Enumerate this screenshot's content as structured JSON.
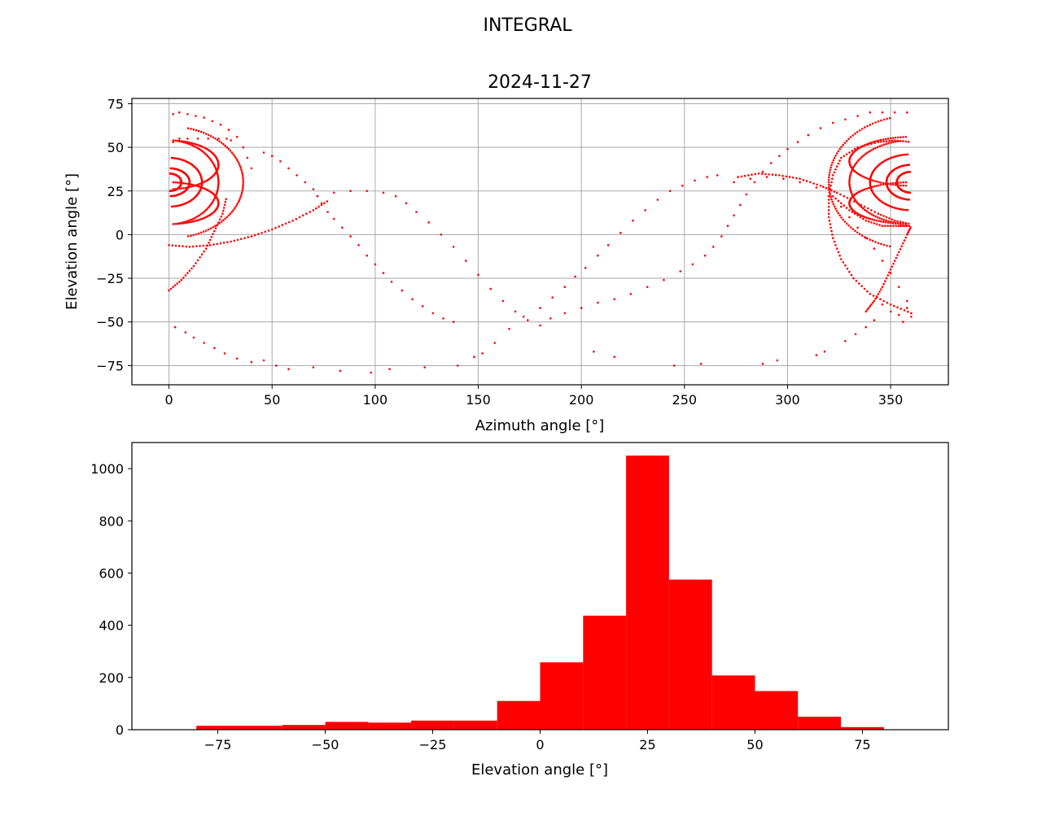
{
  "figure": {
    "suptitle": "INTEGRAL",
    "marker_color": "#ff0000"
  },
  "chart_data": [
    {
      "type": "scatter",
      "title": "2024-11-27",
      "xlabel": "Azimuth angle [°]",
      "ylabel": "Elevation angle [°]",
      "xlim": [
        -18,
        378
      ],
      "ylim": [
        -86,
        78
      ],
      "xticks": [
        0,
        50,
        100,
        150,
        200,
        250,
        300,
        350
      ],
      "yticks": [
        -75,
        -50,
        -25,
        0,
        25,
        50,
        75
      ],
      "grid": true,
      "color": "#ff0000",
      "bands": [
        {
          "az": [
            0,
            360
          ],
          "el": [
            -78,
            72
          ],
          "points": 1
        }
      ],
      "points": [
        [
          2,
          69
        ],
        [
          5,
          70
        ],
        [
          9,
          69
        ],
        [
          13,
          68
        ],
        [
          17,
          67
        ],
        [
          21,
          65
        ],
        [
          25,
          63
        ],
        [
          29,
          60
        ],
        [
          33,
          56
        ],
        [
          36,
          50
        ],
        [
          38,
          44
        ],
        [
          40,
          38
        ],
        [
          2,
          53
        ],
        [
          5,
          55
        ],
        [
          9,
          55
        ],
        [
          14,
          55
        ],
        [
          19,
          55
        ],
        [
          24,
          55
        ],
        [
          28,
          55
        ],
        [
          30,
          54
        ],
        [
          46,
          47
        ],
        [
          50,
          45
        ],
        [
          54,
          42
        ],
        [
          58,
          38
        ],
        [
          62,
          34
        ],
        [
          66,
          30
        ],
        [
          70,
          26
        ],
        [
          72,
          22
        ],
        [
          74,
          18
        ],
        [
          77,
          13
        ],
        [
          80,
          9
        ],
        [
          84,
          4
        ],
        [
          88,
          -1
        ],
        [
          92,
          -6
        ],
        [
          96,
          -12
        ],
        [
          100,
          -17
        ],
        [
          104,
          -22
        ],
        [
          108,
          -27
        ],
        [
          113,
          -32
        ],
        [
          118,
          -37
        ],
        [
          123,
          -41
        ],
        [
          128,
          -45
        ],
        [
          133,
          -48
        ],
        [
          138,
          -50
        ],
        [
          72,
          22
        ],
        [
          80,
          24
        ],
        [
          88,
          25
        ],
        [
          96,
          25
        ],
        [
          104,
          24
        ],
        [
          110,
          22
        ],
        [
          115,
          18
        ],
        [
          120,
          13
        ],
        [
          126,
          7
        ],
        [
          132,
          0
        ],
        [
          138,
          -7
        ],
        [
          144,
          -15
        ],
        [
          150,
          -23
        ],
        [
          156,
          -31
        ],
        [
          162,
          -38
        ],
        [
          168,
          -44
        ],
        [
          174,
          -49
        ],
        [
          180,
          -52
        ],
        [
          3,
          -53
        ],
        [
          8,
          -56
        ],
        [
          12,
          -59
        ],
        [
          17,
          -62
        ],
        [
          22,
          -65
        ],
        [
          27,
          -68
        ],
        [
          33,
          -71
        ],
        [
          40,
          -73
        ],
        [
          46,
          -72
        ],
        [
          52,
          -75
        ],
        [
          58,
          -77
        ],
        [
          70,
          -76
        ],
        [
          83,
          -78
        ],
        [
          98,
          -79
        ],
        [
          107,
          -77
        ],
        [
          124,
          -76
        ],
        [
          140,
          -75
        ],
        [
          148,
          -70
        ],
        [
          152,
          -68
        ],
        [
          158,
          -62
        ],
        [
          165,
          -54
        ],
        [
          172,
          -47
        ],
        [
          180,
          -42
        ],
        [
          186,
          -36
        ],
        [
          192,
          -30
        ],
        [
          197,
          -24
        ],
        [
          202,
          -19
        ],
        [
          208,
          -12
        ],
        [
          213,
          -6
        ],
        [
          219,
          1
        ],
        [
          225,
          8
        ],
        [
          231,
          14
        ],
        [
          237,
          20
        ],
        [
          243,
          25
        ],
        [
          249,
          28
        ],
        [
          255,
          31
        ],
        [
          261,
          33
        ],
        [
          266,
          34
        ],
        [
          206,
          -67
        ],
        [
          216,
          -70
        ],
        [
          245,
          -75
        ],
        [
          258,
          -74
        ],
        [
          288,
          -74
        ],
        [
          295,
          -72
        ],
        [
          314,
          -69
        ],
        [
          318,
          -67
        ],
        [
          328,
          -61
        ],
        [
          333,
          -57
        ],
        [
          338,
          -53
        ],
        [
          342,
          -49
        ],
        [
          185,
          -48
        ],
        [
          192,
          -45
        ],
        [
          200,
          -42
        ],
        [
          208,
          -39
        ],
        [
          216,
          -37
        ],
        [
          224,
          -34
        ],
        [
          232,
          -30
        ],
        [
          240,
          -26
        ],
        [
          248,
          -21
        ],
        [
          254,
          -17
        ],
        [
          260,
          -12
        ],
        [
          264,
          -7
        ],
        [
          268,
          -1
        ],
        [
          271,
          5
        ],
        [
          274,
          11
        ],
        [
          277,
          17
        ],
        [
          280,
          23
        ],
        [
          284,
          30
        ],
        [
          288,
          36
        ],
        [
          292,
          41
        ],
        [
          296,
          45
        ],
        [
          300,
          49
        ],
        [
          305,
          53
        ],
        [
          310,
          57
        ],
        [
          316,
          61
        ],
        [
          322,
          64
        ],
        [
          328,
          66
        ],
        [
          334,
          68
        ],
        [
          340,
          70
        ],
        [
          346,
          70
        ],
        [
          352,
          70
        ],
        [
          358,
          70
        ],
        [
          274,
          30
        ],
        [
          282,
          32
        ],
        [
          290,
          33
        ],
        [
          298,
          32
        ],
        [
          306,
          30
        ],
        [
          314,
          27
        ],
        [
          320,
          22
        ],
        [
          326,
          16
        ],
        [
          330,
          10
        ],
        [
          334,
          4
        ],
        [
          338,
          -2
        ],
        [
          342,
          -8
        ],
        [
          346,
          -15
        ],
        [
          350,
          -22
        ],
        [
          354,
          -30
        ],
        [
          358,
          -38
        ],
        [
          360,
          -45
        ],
        [
          356,
          -50
        ],
        [
          360,
          -47
        ],
        [
          358,
          -42
        ],
        [
          354,
          -46
        ],
        [
          350,
          -44
        ],
        [
          346,
          -40
        ]
      ],
      "curves": [
        {
          "cx": 0,
          "cy": 30,
          "rx": 36,
          "ry": 32,
          "from": -75,
          "to": 75
        },
        {
          "cx": 0,
          "cy": 30,
          "rx": 24,
          "ry": 24,
          "from": -80,
          "to": 80
        },
        {
          "cx": 0,
          "cy": 30,
          "rx": 16,
          "ry": 14,
          "from": -85,
          "to": 85
        },
        {
          "cx": 0,
          "cy": 30,
          "rx": 10,
          "ry": 8,
          "from": -85,
          "to": 85
        },
        {
          "cx": 0,
          "cy": 30,
          "rx": 6,
          "ry": 5,
          "from": -85,
          "to": 85
        },
        {
          "cx": 0,
          "cy": 18,
          "rx": 24,
          "ry": 12,
          "from": -85,
          "to": 85
        },
        {
          "cx": 0,
          "cy": 40,
          "rx": 24,
          "ry": 14,
          "from": -85,
          "to": 85
        },
        {
          "cx": 360,
          "cy": 30,
          "rx": 40,
          "ry": 38,
          "from": 105,
          "to": 255
        },
        {
          "cx": 360,
          "cy": 30,
          "rx": 30,
          "ry": 24,
          "from": 100,
          "to": 260
        },
        {
          "cx": 360,
          "cy": 30,
          "rx": 20,
          "ry": 16,
          "from": 95,
          "to": 265
        },
        {
          "cx": 360,
          "cy": 30,
          "rx": 12,
          "ry": 10,
          "from": 95,
          "to": 265
        },
        {
          "cx": 360,
          "cy": 30,
          "rx": 7,
          "ry": 6,
          "from": 95,
          "to": 265
        },
        {
          "cx": 360,
          "cy": 18,
          "rx": 30,
          "ry": 12,
          "from": 95,
          "to": 265
        },
        {
          "cx": 360,
          "cy": 42,
          "rx": 30,
          "ry": 14,
          "from": 95,
          "to": 265
        }
      ],
      "lines": [
        [
          [
            0,
            -6
          ],
          [
            10,
            -7
          ],
          [
            20,
            -6
          ],
          [
            30,
            -4
          ],
          [
            40,
            -1
          ],
          [
            50,
            3
          ],
          [
            60,
            8
          ],
          [
            70,
            14
          ],
          [
            78,
            20
          ]
        ],
        [
          [
            0,
            -32
          ],
          [
            6,
            -26
          ],
          [
            12,
            -18
          ],
          [
            18,
            -8
          ],
          [
            22,
            2
          ],
          [
            26,
            12
          ],
          [
            28,
            22
          ]
        ],
        [
          [
            322,
            22
          ],
          [
            330,
            14
          ],
          [
            338,
            8
          ],
          [
            346,
            5
          ],
          [
            354,
            5
          ],
          [
            360,
            5
          ]
        ],
        [
          [
            338,
            -44
          ],
          [
            342,
            -38
          ],
          [
            346,
            -30
          ],
          [
            350,
            -20
          ],
          [
            354,
            -10
          ],
          [
            358,
            0
          ],
          [
            360,
            5
          ]
        ],
        [
          [
            276,
            33
          ],
          [
            286,
            35
          ],
          [
            296,
            34
          ],
          [
            306,
            32
          ],
          [
            316,
            28
          ],
          [
            324,
            24
          ],
          [
            334,
            18
          ],
          [
            344,
            12
          ],
          [
            352,
            8
          ],
          [
            360,
            6
          ]
        ],
        [
          [
            360,
            -45
          ],
          [
            350,
            -40
          ],
          [
            340,
            -34
          ],
          [
            332,
            -25
          ],
          [
            326,
            -14
          ],
          [
            322,
            -2
          ],
          [
            320,
            10
          ],
          [
            320,
            22
          ],
          [
            322,
            34
          ],
          [
            326,
            44
          ],
          [
            334,
            50
          ],
          [
            344,
            53
          ],
          [
            352,
            54
          ],
          [
            360,
            53
          ]
        ]
      ]
    },
    {
      "type": "bar",
      "xlabel": "Elevation angle [°]",
      "ylabel": "",
      "xlim": [
        -95,
        95
      ],
      "ylim": [
        0,
        1100
      ],
      "xticks": [
        -75,
        -50,
        -25,
        0,
        25,
        50,
        75
      ],
      "yticks": [
        0,
        200,
        400,
        600,
        800,
        1000
      ],
      "grid": false,
      "color": "#ff0000",
      "bin_edges": [
        -80,
        -70,
        -60,
        -50,
        -40,
        -30,
        -20,
        -10,
        0,
        10,
        20,
        30,
        40,
        50,
        60,
        70,
        80
      ],
      "values": [
        15,
        15,
        18,
        30,
        27,
        35,
        35,
        110,
        258,
        437,
        1050,
        575,
        208,
        148,
        50,
        10
      ]
    }
  ]
}
